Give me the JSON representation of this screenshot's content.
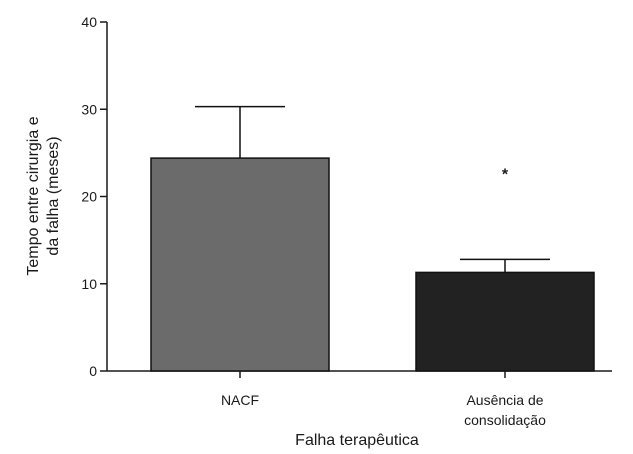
{
  "chart_data": {
    "type": "bar",
    "categories": [
      [
        "NACF"
      ],
      [
        "Ausência de",
        "consolidação"
      ]
    ],
    "values": [
      24.4,
      11.3
    ],
    "error_upper": [
      30.3,
      12.8
    ],
    "bar_colors": [
      "#6b6b6b",
      "#222222"
    ],
    "axis_color": "#1a1a1a",
    "xlabel": "Falha terapêutica",
    "ylabel": [
      "Tempo entre cirurgia e",
      "da falha (meses)"
    ],
    "ylim": [
      0,
      40
    ],
    "yticks": [
      0,
      10,
      20,
      30,
      40
    ],
    "annotations": [
      {
        "category_index": 1,
        "text": "*",
        "y": 23
      }
    ],
    "grid": false,
    "legend": "none"
  }
}
